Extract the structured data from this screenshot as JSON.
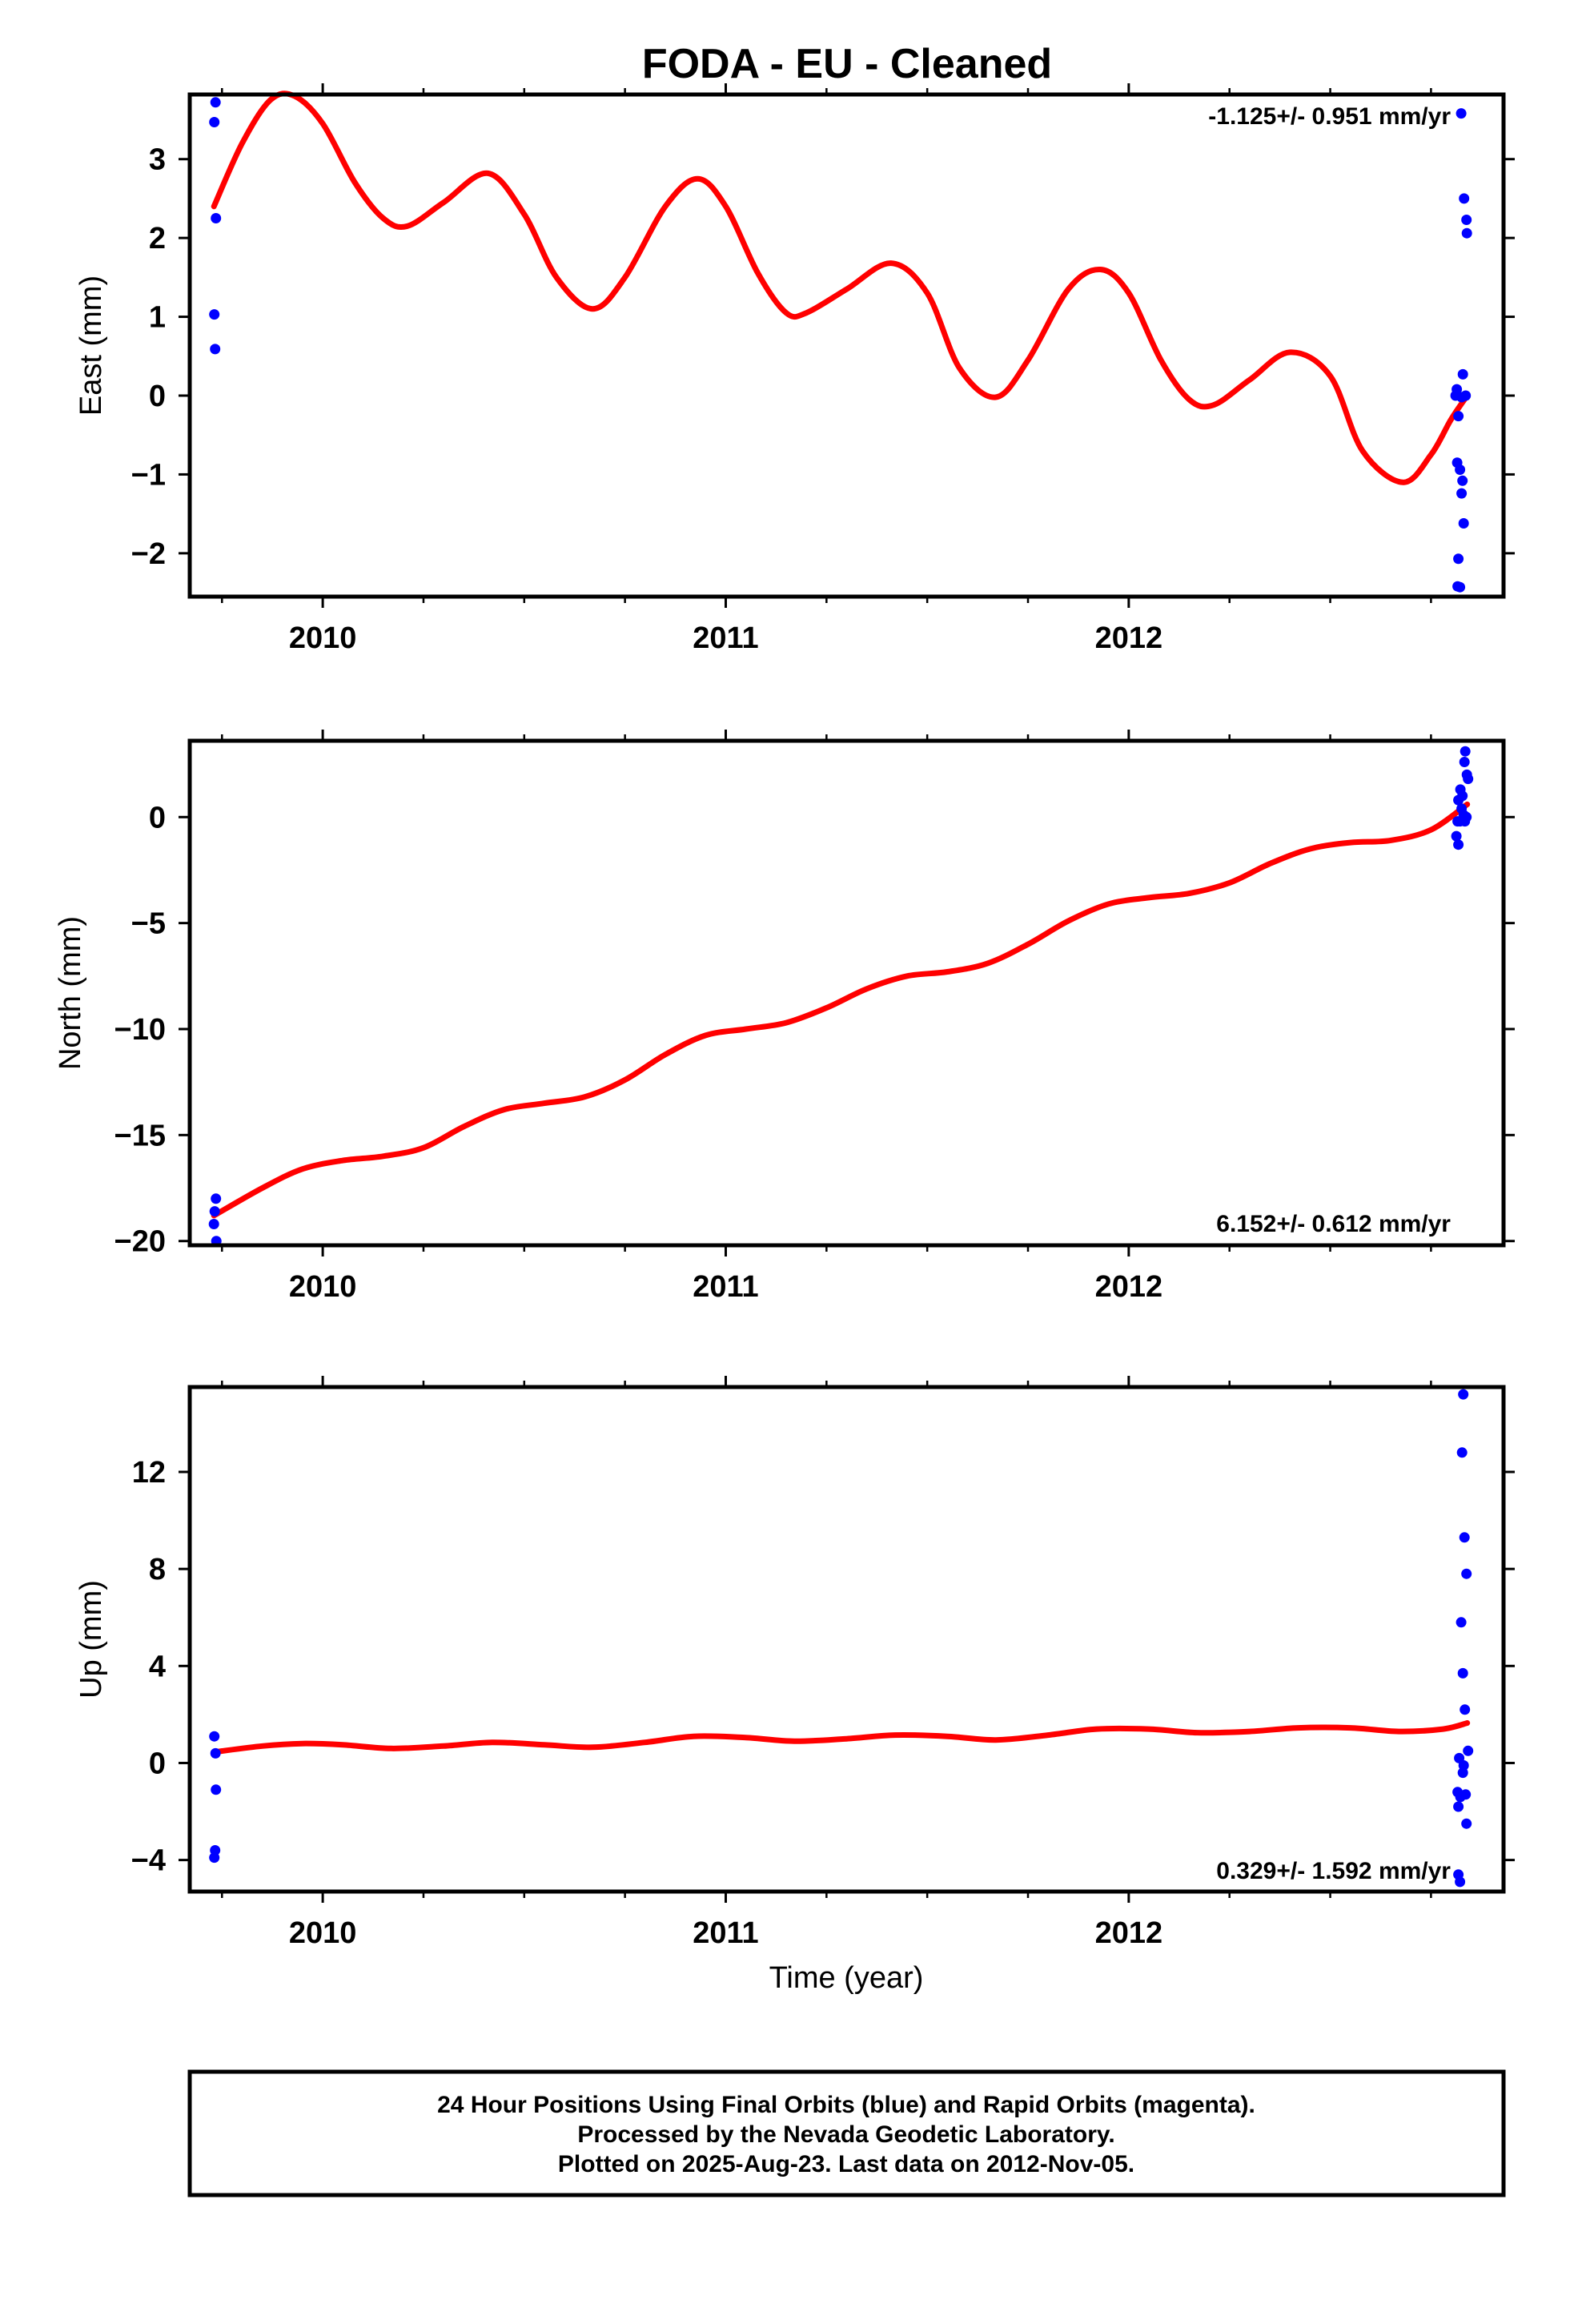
{
  "figure_title": "FODA  - EU - Cleaned",
  "footer": {
    "line1": "24 Hour Positions Using Final Orbits (blue) and Rapid Orbits (magenta).",
    "line2": "Processed by the Nevada Geodetic Laboratory.",
    "line3": "Plotted on 2025-Aug-23. Last data on 2012-Nov-05."
  },
  "colors": {
    "points": "#0000ff",
    "fit": "#ff0000",
    "axis": "#000000"
  },
  "chart_data": [
    {
      "type": "scatter",
      "title": "FODA  - EU - Cleaned",
      "ylabel": "East (mm)",
      "xlabel": "",
      "rate_label": "-1.125+/- 0.951 mm/yr",
      "xlim": [
        2009.67,
        2012.93
      ],
      "ylim": [
        -2.55,
        3.82
      ],
      "xticks": [
        2010,
        2011,
        2012
      ],
      "yticks": [
        3,
        2,
        1,
        0,
        -1,
        -2
      ],
      "ytick_labels": [
        "3",
        "2",
        "1",
        "0",
        "−1",
        "−2"
      ],
      "grid": false,
      "series": [
        {
          "role": "daily positions",
          "points": [
            [
              2009.734,
              3.72
            ],
            [
              2009.731,
              3.47
            ],
            [
              2009.735,
              2.25
            ],
            [
              2009.731,
              1.03
            ],
            [
              2009.733,
              0.59
            ],
            [
              2012.825,
              3.58
            ],
            [
              2012.832,
              2.5
            ],
            [
              2012.838,
              2.23
            ],
            [
              2012.839,
              2.06
            ],
            [
              2012.814,
              0.08
            ],
            [
              2012.811,
              0.0
            ],
            [
              2012.818,
              -0.26
            ],
            [
              2012.826,
              -0.02
            ],
            [
              2012.829,
              0.27
            ],
            [
              2012.836,
              0.0
            ],
            [
              2012.815,
              -0.85
            ],
            [
              2012.822,
              -0.94
            ],
            [
              2012.828,
              -1.08
            ],
            [
              2012.826,
              -1.24
            ],
            [
              2012.831,
              -1.62
            ],
            [
              2012.818,
              -2.07
            ],
            [
              2012.816,
              -2.42
            ],
            [
              2012.822,
              -2.43
            ]
          ]
        },
        {
          "role": "model fit",
          "x": [
            2009.73,
            2009.8,
            2009.87,
            2009.93,
            2010.0,
            2010.08,
            2010.15,
            2010.21,
            2010.3,
            2010.41,
            2010.5,
            2010.58,
            2010.67,
            2010.75,
            2010.85,
            2010.93,
            2011.0,
            2011.08,
            2011.15,
            2011.2,
            2011.3,
            2011.41,
            2011.5,
            2011.58,
            2011.67,
            2011.75,
            2011.85,
            2011.93,
            2012.0,
            2012.08,
            2012.15,
            2012.21,
            2012.3,
            2012.4,
            2012.5,
            2012.58,
            2012.68,
            2012.75,
            2012.8,
            2012.84
          ],
          "y": [
            2.4,
            3.2,
            3.75,
            3.8,
            3.45,
            2.7,
            2.25,
            2.15,
            2.45,
            2.82,
            2.3,
            1.5,
            1.1,
            1.5,
            2.4,
            2.75,
            2.4,
            1.55,
            1.05,
            1.05,
            1.35,
            1.68,
            1.3,
            0.35,
            -0.02,
            0.45,
            1.35,
            1.6,
            1.3,
            0.45,
            -0.05,
            -0.12,
            0.2,
            0.55,
            0.25,
            -0.7,
            -1.1,
            -0.75,
            -0.3,
            0.0
          ]
        }
      ]
    },
    {
      "type": "scatter",
      "title": "",
      "ylabel": "North (mm)",
      "xlabel": "",
      "rate_label": "6.152+/- 0.612 mm/yr",
      "xlim": [
        2009.67,
        2012.93
      ],
      "ylim": [
        -20.2,
        3.6
      ],
      "xticks": [
        2010,
        2011,
        2012
      ],
      "yticks": [
        0,
        -5,
        -10,
        -15,
        -20
      ],
      "ytick_labels": [
        "0",
        "−5",
        "−10",
        "−15",
        "−20"
      ],
      "grid": false,
      "series": [
        {
          "role": "daily positions",
          "points": [
            [
              2009.735,
              -18.0
            ],
            [
              2009.732,
              -18.6
            ],
            [
              2009.73,
              -19.2
            ],
            [
              2009.736,
              -20.0
            ],
            [
              2012.835,
              3.1
            ],
            [
              2012.833,
              2.6
            ],
            [
              2012.839,
              2.0
            ],
            [
              2012.842,
              1.8
            ],
            [
              2012.823,
              1.3
            ],
            [
              2012.828,
              1.0
            ],
            [
              2012.818,
              0.8
            ],
            [
              2012.826,
              0.4
            ],
            [
              2012.831,
              0.1
            ],
            [
              2012.838,
              0.0
            ],
            [
              2012.816,
              -0.2
            ],
            [
              2012.822,
              -0.2
            ],
            [
              2012.834,
              -0.2
            ],
            [
              2012.813,
              -0.9
            ],
            [
              2012.818,
              -1.3
            ]
          ]
        },
        {
          "role": "model fit",
          "x": [
            2009.73,
            2009.85,
            2009.95,
            2010.05,
            2010.15,
            2010.25,
            2010.35,
            2010.45,
            2010.55,
            2010.65,
            2010.75,
            2010.85,
            2010.95,
            2011.05,
            2011.15,
            2011.25,
            2011.35,
            2011.45,
            2011.55,
            2011.65,
            2011.75,
            2011.85,
            2011.95,
            2012.05,
            2012.15,
            2012.25,
            2012.35,
            2012.45,
            2012.55,
            2012.65,
            2012.75,
            2012.84
          ],
          "y": [
            -18.8,
            -17.5,
            -16.6,
            -16.2,
            -16.0,
            -15.6,
            -14.6,
            -13.8,
            -13.5,
            -13.2,
            -12.4,
            -11.2,
            -10.3,
            -10.0,
            -9.7,
            -9.0,
            -8.1,
            -7.5,
            -7.3,
            -6.9,
            -6.0,
            -4.9,
            -4.1,
            -3.8,
            -3.6,
            -3.1,
            -2.2,
            -1.5,
            -1.2,
            -1.1,
            -0.6,
            0.6
          ]
        }
      ]
    },
    {
      "type": "scatter",
      "title": "",
      "ylabel": "Up (mm)",
      "xlabel": "Time (year)",
      "rate_label": "0.329+/- 1.592 mm/yr",
      "xlim": [
        2009.67,
        2012.93
      ],
      "ylim": [
        -5.3,
        15.5
      ],
      "xticks": [
        2010,
        2011,
        2012
      ],
      "yticks": [
        12,
        8,
        4,
        0,
        -4
      ],
      "ytick_labels": [
        "12",
        "8",
        "4",
        "0",
        "−4"
      ],
      "grid": false,
      "series": [
        {
          "role": "daily positions",
          "points": [
            [
              2009.731,
              1.1
            ],
            [
              2009.734,
              0.4
            ],
            [
              2009.735,
              -1.1
            ],
            [
              2009.733,
              -3.6
            ],
            [
              2009.731,
              -3.9
            ],
            [
              2012.83,
              15.2
            ],
            [
              2012.827,
              12.8
            ],
            [
              2012.833,
              9.3
            ],
            [
              2012.838,
              7.8
            ],
            [
              2012.825,
              5.8
            ],
            [
              2012.829,
              3.7
            ],
            [
              2012.834,
              2.2
            ],
            [
              2012.842,
              0.5
            ],
            [
              2012.82,
              0.2
            ],
            [
              2012.831,
              -0.1
            ],
            [
              2012.829,
              -0.4
            ],
            [
              2012.816,
              -1.2
            ],
            [
              2012.823,
              -1.4
            ],
            [
              2012.836,
              -1.3
            ],
            [
              2012.818,
              -1.8
            ],
            [
              2012.838,
              -2.5
            ],
            [
              2012.818,
              -4.6
            ],
            [
              2012.822,
              -4.9
            ]
          ]
        },
        {
          "role": "model fit",
          "x": [
            2009.73,
            2009.85,
            2009.95,
            2010.05,
            2010.17,
            2010.3,
            2010.42,
            2010.55,
            2010.67,
            2010.8,
            2010.92,
            2011.05,
            2011.17,
            2011.3,
            2011.42,
            2011.55,
            2011.67,
            2011.8,
            2011.92,
            2012.05,
            2012.17,
            2012.3,
            2012.42,
            2012.55,
            2012.67,
            2012.78,
            2012.84
          ],
          "y": [
            0.45,
            0.7,
            0.8,
            0.75,
            0.6,
            0.7,
            0.85,
            0.75,
            0.65,
            0.85,
            1.1,
            1.05,
            0.9,
            1.0,
            1.15,
            1.1,
            0.95,
            1.15,
            1.4,
            1.4,
            1.25,
            1.3,
            1.45,
            1.45,
            1.3,
            1.4,
            1.65
          ]
        }
      ]
    }
  ]
}
